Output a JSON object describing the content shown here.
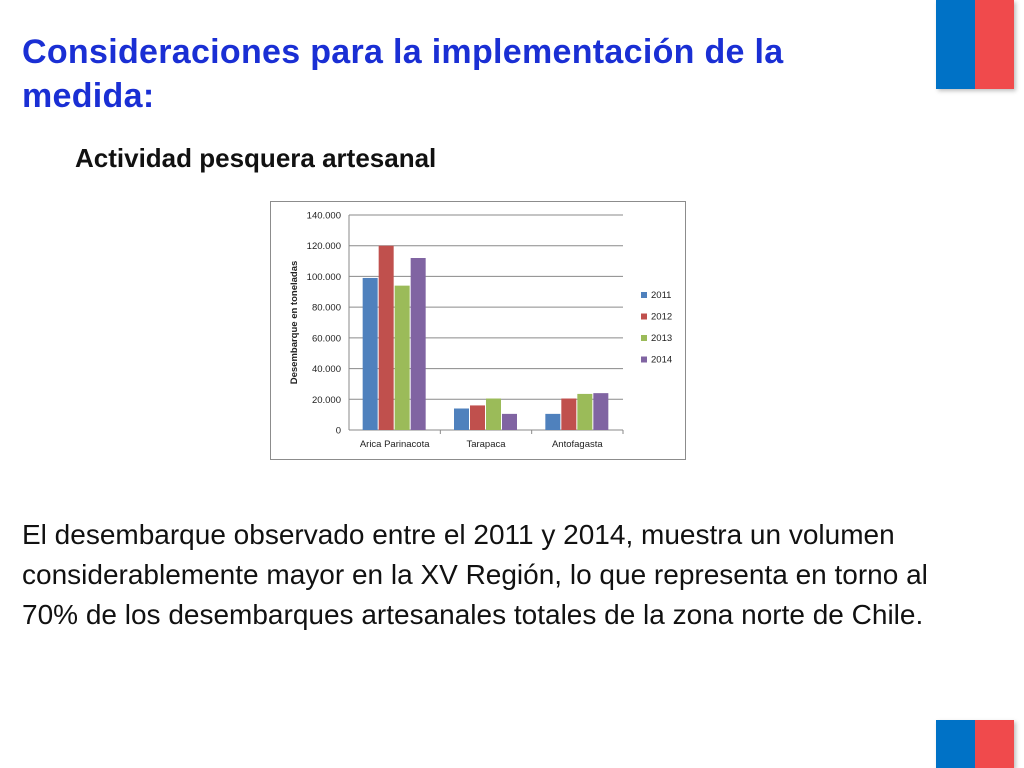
{
  "slide": {
    "title": "Consideraciones para la implementación de la medida:",
    "subtitle": "Actividad pesquera artesanal",
    "body": "El desembarque observado entre el 2011 y 2014, muestra un volumen considerablemente mayor en la XV Región, lo que representa en torno al 70% de los desembarques artesanales totales de la zona norte de Chile."
  },
  "colors": {
    "title": "#1a2fd4",
    "flag_blue": "#0072c6",
    "flag_red": "#f04a4c"
  },
  "chart_data": {
    "type": "bar",
    "categories": [
      "Arica Parinacota",
      "Tarapaca",
      "Antofagasta"
    ],
    "series": [
      {
        "name": "2011",
        "color": "#4f81bd",
        "values": [
          99000,
          14000,
          10500
        ]
      },
      {
        "name": "2012",
        "color": "#c0504d",
        "values": [
          120000,
          16000,
          20500
        ]
      },
      {
        "name": "2013",
        "color": "#9bbb59",
        "values": [
          94000,
          20500,
          23500
        ]
      },
      {
        "name": "2014",
        "color": "#8064a2",
        "values": [
          112000,
          10500,
          24000
        ]
      }
    ],
    "ylabel": "Desembarque en toneladas",
    "xlabel": "",
    "ylim": [
      0,
      140000
    ],
    "yticks": [
      "0",
      "20.000",
      "40.000",
      "60.000",
      "80.000",
      "100.000",
      "120.000",
      "140.000"
    ],
    "grid": true,
    "legend": "right"
  }
}
